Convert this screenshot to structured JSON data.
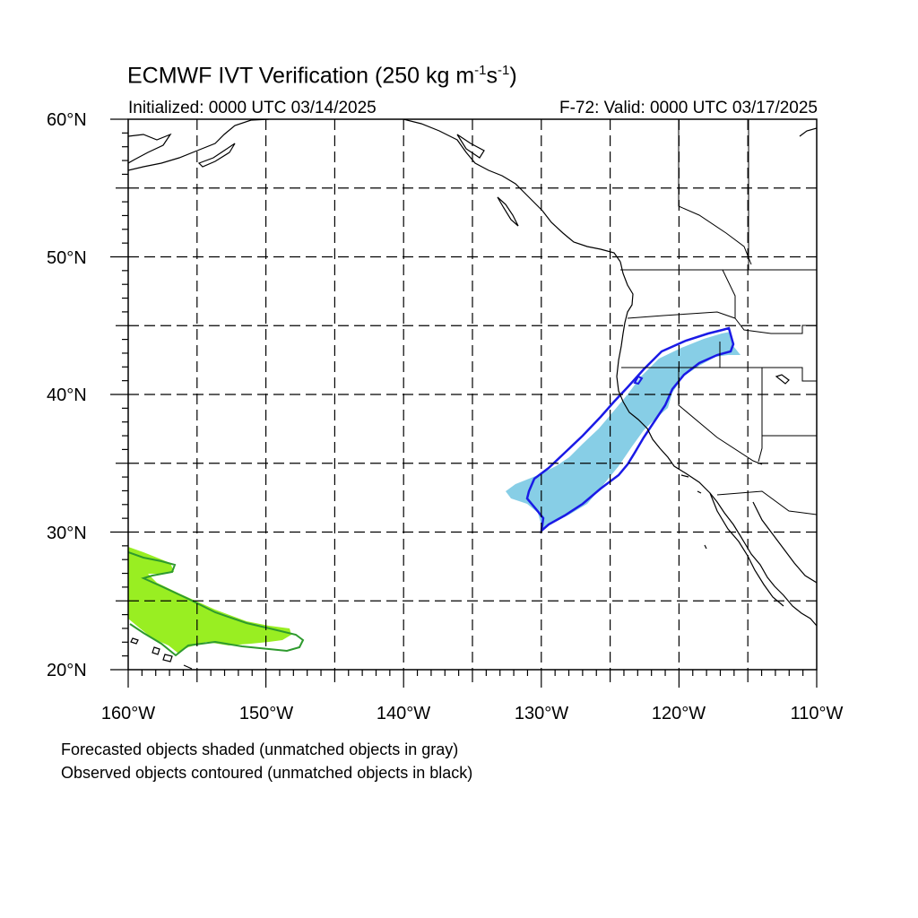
{
  "title": {
    "main_prefix": "ECMWF IVT Verification (250 kg m",
    "exp1": "-1",
    "mid": "s",
    "exp2": "-1",
    "suffix": ")"
  },
  "initialized": "Initialized: 0000 UTC 03/14/2025",
  "valid": "F-72: Valid: 0000 UTC 03/17/2025",
  "lat_labels": [
    "60°N",
    "50°N",
    "40°N",
    "30°N",
    "20°N"
  ],
  "lon_labels": [
    "160°W",
    "150°W",
    "140°W",
    "130°W",
    "120°W",
    "110°W"
  ],
  "notes": [
    "Forecasted objects shaded (unmatched objects in gray)",
    "Observed objects contoured (unmatched objects in black)"
  ],
  "map_extent": {
    "lon_min": -160,
    "lon_max": -110,
    "lat_min": 20,
    "lat_max": 60
  },
  "colors": {
    "object_1_fill": "#87CEE6",
    "object_1_contour": "#1a1ae6",
    "object_2_fill": "#99ee22",
    "object_2_contour": "#2e9a2e",
    "coast": "#000000",
    "grid": "#000000"
  }
}
